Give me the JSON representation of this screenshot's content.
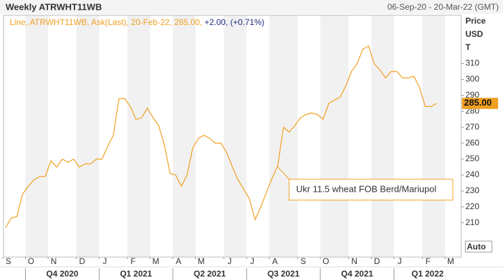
{
  "chart_data": {
    "type": "line",
    "title": "Weekly ATRWHT11WB",
    "date_range": "06-Sep-20 - 20-Mar-22 (GMT)",
    "legend": {
      "prefix": "Line, ATRWHT11WB, Ask(Last), 20-Feb-22, 285.00,",
      "change": "+2.00,",
      "change_pct": "(+0.71%)"
    },
    "y_axis_label": [
      "Price",
      "USD",
      "T"
    ],
    "last_label": "285.00",
    "annotation": "Ukr 11.5 wheat FOB Berd/Mariupol",
    "auto_button": "Auto",
    "quarters": [
      "Q4 2020",
      "Q1 2021",
      "Q2 2021",
      "Q3 2021",
      "Q4 2021",
      "Q1 2022"
    ],
    "categories": [
      "S",
      null,
      null,
      null,
      "O",
      null,
      null,
      null,
      "N",
      null,
      null,
      null,
      null,
      "D",
      null,
      null,
      null,
      "J",
      null,
      null,
      null,
      null,
      "F",
      null,
      null,
      null,
      "M",
      null,
      null,
      null,
      "A",
      null,
      null,
      null,
      "M",
      null,
      null,
      null,
      null,
      "J",
      null,
      null,
      null,
      "J",
      null,
      null,
      null,
      "A",
      null,
      null,
      null,
      null,
      "S",
      null,
      null,
      null,
      "O",
      null,
      null,
      null,
      null,
      "N",
      null,
      null,
      null,
      "D",
      null,
      null,
      null,
      "J",
      null,
      null,
      null,
      null,
      "F",
      null,
      null,
      null,
      "M",
      null,
      null
    ],
    "series": [
      {
        "name": "ATRWHT11WB",
        "color": "#f0a020",
        "values": [
          207,
          213,
          214,
          228,
          233,
          237,
          239,
          239,
          249,
          245,
          250,
          248,
          250,
          245,
          247,
          247,
          250,
          250,
          258,
          265,
          288,
          288,
          283,
          275,
          276,
          282,
          276,
          271,
          259,
          241,
          240,
          233,
          240,
          257,
          263,
          265,
          263,
          260,
          260,
          254,
          245,
          237,
          231,
          225,
          212,
          220,
          229,
          238,
          246,
          270,
          267,
          271,
          276,
          278,
          279,
          278,
          275,
          285,
          287,
          289,
          296,
          305,
          310,
          319,
          321,
          310,
          306,
          301,
          305,
          305,
          301,
          301,
          302,
          295,
          283,
          283,
          285,
          null,
          null,
          null,
          null
        ]
      }
    ],
    "ylim": [
      188.5,
      340.3
    ],
    "yticks": [
      210,
      220,
      230,
      240,
      250,
      260,
      270,
      280,
      290,
      300,
      310
    ]
  }
}
